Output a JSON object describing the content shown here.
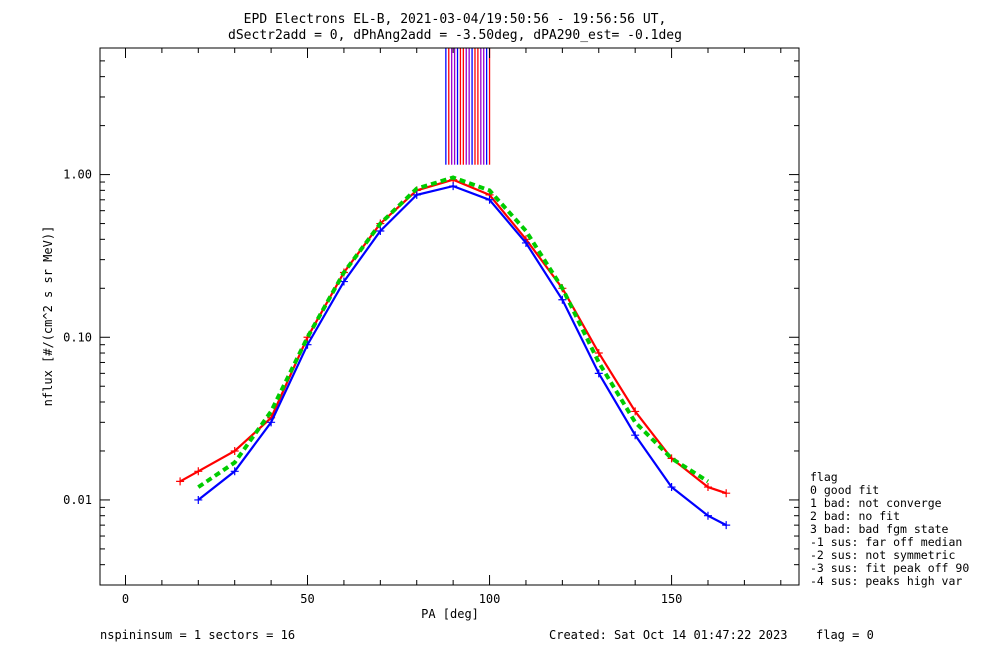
{
  "title": {
    "line1": "EPD Electrons EL-B, 2021-03-04/19:50:56 - 19:56:56 UT,",
    "line2": "dSectr2add = 0, dPhAng2add = -3.50deg, dPA290_est=  -0.1deg"
  },
  "footer": {
    "left": "nspininsum =  1  sectors = 16",
    "created": "Created: Sat Oct 14 01:47:22 2023",
    "flag": "flag = 0"
  },
  "legend": {
    "title": "flag",
    "items": [
      " 0 good fit",
      " 1 bad: not converge",
      " 2 bad: no fit",
      " 3 bad: bad fgm state",
      "-1 sus: far off median",
      "-2 sus: not symmetric",
      "-3 sus: fit peak off 90",
      "-4 sus: peaks high var"
    ]
  },
  "chart_data": {
    "type": "line",
    "title": "EPD Electrons EL-B, 2021-03-04/19:50:56 - 19:56:56 UT, dSectr2add = 0, dPhAng2add = -3.50deg, dPA290_est=  -0.1deg",
    "xlabel": "PA [deg]",
    "ylabel": "nflux [#/(cm^2 s sr MeV)]",
    "xlim": [
      -7,
      185
    ],
    "ylim": [
      0.003,
      6
    ],
    "yscale": "log",
    "x_ticks": [
      0,
      50,
      100,
      150
    ],
    "x_tick_labels": [
      "0",
      "50",
      "100",
      "150"
    ],
    "y_ticks": [
      0.01,
      0.1,
      1.0
    ],
    "y_tick_labels": [
      "0.01",
      "0.10",
      "1.00"
    ],
    "grid": false,
    "series": [
      {
        "color": "#ff0000",
        "values": [
          {
            "x": 15,
            "y": 0.013
          },
          {
            "x": 20,
            "y": 0.015
          },
          {
            "x": 30,
            "y": 0.02
          },
          {
            "x": 40,
            "y": 0.032
          },
          {
            "x": 50,
            "y": 0.1
          },
          {
            "x": 60,
            "y": 0.25
          },
          {
            "x": 70,
            "y": 0.5
          },
          {
            "x": 80,
            "y": 0.8
          },
          {
            "x": 90,
            "y": 0.93
          },
          {
            "x": 100,
            "y": 0.75
          },
          {
            "x": 110,
            "y": 0.4
          },
          {
            "x": 120,
            "y": 0.2
          },
          {
            "x": 130,
            "y": 0.08
          },
          {
            "x": 140,
            "y": 0.035
          },
          {
            "x": 150,
            "y": 0.018
          },
          {
            "x": 160,
            "y": 0.012
          },
          {
            "x": 165,
            "y": 0.011
          }
        ]
      },
      {
        "color": "#0000ff",
        "values": [
          {
            "x": 20,
            "y": 0.01
          },
          {
            "x": 30,
            "y": 0.015
          },
          {
            "x": 40,
            "y": 0.03
          },
          {
            "x": 50,
            "y": 0.09
          },
          {
            "x": 60,
            "y": 0.22
          },
          {
            "x": 70,
            "y": 0.45
          },
          {
            "x": 80,
            "y": 0.75
          },
          {
            "x": 90,
            "y": 0.85
          },
          {
            "x": 100,
            "y": 0.7
          },
          {
            "x": 110,
            "y": 0.38
          },
          {
            "x": 120,
            "y": 0.17
          },
          {
            "x": 130,
            "y": 0.06
          },
          {
            "x": 140,
            "y": 0.025
          },
          {
            "x": 150,
            "y": 0.012
          },
          {
            "x": 160,
            "y": 0.008
          },
          {
            "x": 165,
            "y": 0.007
          }
        ]
      },
      {
        "color": "#00cc00",
        "dashed": true,
        "values": [
          {
            "x": 20,
            "y": 0.012
          },
          {
            "x": 30,
            "y": 0.017
          },
          {
            "x": 40,
            "y": 0.035
          },
          {
            "x": 50,
            "y": 0.1
          },
          {
            "x": 60,
            "y": 0.25
          },
          {
            "x": 70,
            "y": 0.5
          },
          {
            "x": 80,
            "y": 0.82
          },
          {
            "x": 90,
            "y": 0.96
          },
          {
            "x": 100,
            "y": 0.8
          },
          {
            "x": 110,
            "y": 0.45
          },
          {
            "x": 120,
            "y": 0.2
          },
          {
            "x": 130,
            "y": 0.07
          },
          {
            "x": 140,
            "y": 0.03
          },
          {
            "x": 150,
            "y": 0.018
          },
          {
            "x": 160,
            "y": 0.013
          }
        ]
      }
    ],
    "vertical_lines": {
      "x_range": [
        88,
        100
      ],
      "y_bottom": 1.15,
      "colors": [
        "#0000ff",
        "#9900cc",
        "#ff0000"
      ]
    }
  }
}
